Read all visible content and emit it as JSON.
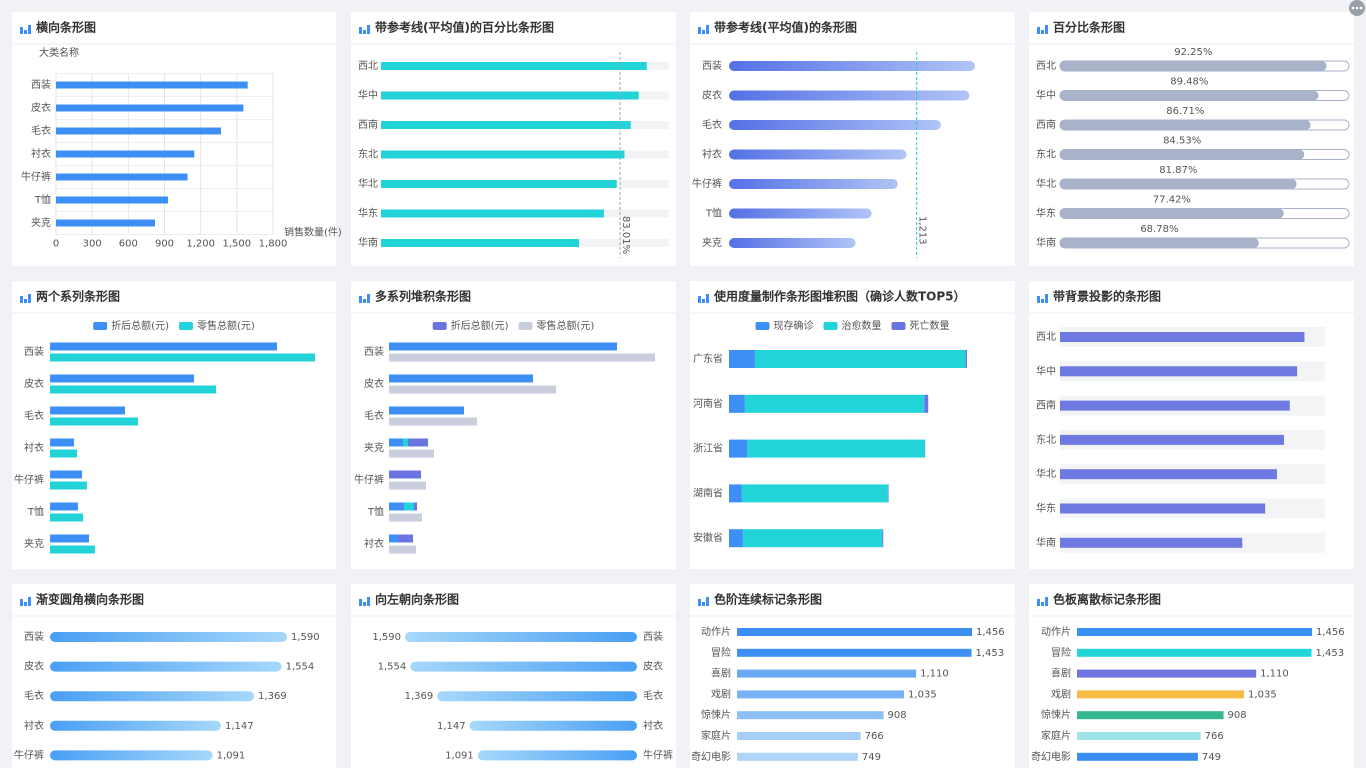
{
  "chart_data": [
    {
      "type": "bar",
      "title": "横向条形图",
      "y_axis_label": "大类名称",
      "x_axis_label": "销售数量(件)",
      "categories": [
        "西装",
        "皮衣",
        "毛衣",
        "衬衣",
        "牛仔裤",
        "T恤",
        "夹克"
      ],
      "values": [
        1590,
        1554,
        1369,
        1147,
        1091,
        929,
        821
      ],
      "color": "#3d8ff5",
      "xlim": [
        0,
        1800
      ],
      "xticks": [
        0,
        300,
        600,
        900,
        {
          "value": 1200,
          "label": "1,200"
        },
        {
          "value": 1500,
          "label": "1,500"
        },
        {
          "value": 1800,
          "label": "1,800"
        }
      ],
      "grid": true
    },
    {
      "type": "bar",
      "title": "带参考线(平均值)的百分比条形图",
      "categories": [
        "西北",
        "华中",
        "西南",
        "东北",
        "华北",
        "华东",
        "华南"
      ],
      "values": [
        92.25,
        89.48,
        86.71,
        84.53,
        81.87,
        77.42,
        68.78
      ],
      "color": "#22d3d8",
      "xlim": [
        0,
        100
      ],
      "track": true,
      "reference_line": {
        "value": 83.01,
        "label": "83.01%",
        "color": "#a0a4ab"
      }
    },
    {
      "type": "bar",
      "title": "带参考线(平均值)的条形图",
      "categories": [
        "西装",
        "皮衣",
        "毛衣",
        "衬衣",
        "牛仔裤",
        "T恤",
        "夹克"
      ],
      "values": [
        1590,
        1554,
        1369,
        1147,
        1091,
        922,
        818
      ],
      "gradient": [
        "#5470e6",
        "#b0c4f6"
      ],
      "reference_line": {
        "value": 1213,
        "label": "1,213",
        "color": "#22c7d8"
      }
    },
    {
      "type": "bar",
      "title": "百分比条形图",
      "categories": [
        "西北",
        "华中",
        "西南",
        "东北",
        "华北",
        "华东",
        "华南"
      ],
      "values": [
        92.25,
        89.48,
        86.71,
        84.53,
        81.87,
        77.42,
        68.78
      ],
      "value_labels": [
        "92.25%",
        "89.48%",
        "86.71%",
        "84.53%",
        "81.87%",
        "77.42%",
        "68.78%"
      ],
      "color": "#a8b2c8",
      "xlim": [
        0,
        100
      ],
      "track": true
    },
    {
      "type": "bar",
      "title": "两个系列条形图",
      "categories": [
        "西装",
        "皮衣",
        "毛衣",
        "衬衣",
        "牛仔裤",
        "T恤",
        "夹克"
      ],
      "series": [
        {
          "name": "折后总额(元)",
          "color": "#3d8ff5",
          "values": [
            227,
            144,
            75,
            24,
            32,
            28,
            39
          ]
        },
        {
          "name": "零售总额(元)",
          "color": "#22d3d8",
          "values": [
            265,
            166,
            88,
            27,
            37,
            33,
            45
          ]
        }
      ]
    },
    {
      "type": "bar",
      "title": "多系列堆积条形图",
      "stacked": true,
      "categories": [
        "西装",
        "皮衣",
        "毛衣",
        "夹克",
        "牛仔裤",
        "T恤",
        "衬衣"
      ],
      "series": [
        {
          "color": "#3d8ff5",
          "stack": 0,
          "values": [
            228,
            144,
            75,
            14,
            0,
            15,
            9
          ]
        },
        {
          "color": "#22d3d8",
          "stack": 0,
          "values": [
            0,
            0,
            0,
            5,
            0,
            10,
            0
          ]
        },
        {
          "name": "折后总额(元)",
          "color": "#6c74e4",
          "stack": 0,
          "values": [
            0,
            0,
            0,
            20,
            32,
            3,
            15
          ]
        },
        {
          "name": "零售总额(元)",
          "color": "#c8cedb",
          "stack": 1,
          "values": [
            266,
            167,
            88,
            45,
            37,
            33,
            27
          ]
        }
      ]
    },
    {
      "type": "bar",
      "title": "使用度量制作条形图堆积图（确诊人数TOP5）",
      "stacked": true,
      "categories": [
        "广东省",
        "河南省",
        "浙江省",
        "湖南省",
        "安徽省"
      ],
      "series": [
        {
          "name": "现存确诊",
          "color": "#3d8ff5",
          "values": [
            147,
            90,
            102,
            73,
            79
          ]
        },
        {
          "name": "治愈数量",
          "color": "#22d3d8",
          "values": [
            1195,
            1018,
            1010,
            828,
            790
          ]
        },
        {
          "name": "死亡数量",
          "color": "#6c74e4",
          "values": [
            8,
            22,
            1,
            4,
            6
          ]
        }
      ]
    },
    {
      "type": "bar",
      "title": "带背景投影的条形图",
      "categories": [
        "西北",
        "华中",
        "西南",
        "东北",
        "华北",
        "华东",
        "华南"
      ],
      "values": [
        92.25,
        89.48,
        86.71,
        84.53,
        81.87,
        77.42,
        68.78
      ],
      "color": "#6e7ae2",
      "xlim": [
        0,
        100
      ],
      "track": true
    },
    {
      "type": "bar",
      "title": "渐变圆角横向条形图",
      "categories": [
        "西装",
        "皮衣",
        "毛衣",
        "衬衣",
        "牛仔裤"
      ],
      "values": [
        1590,
        1554,
        1369,
        1147,
        1091
      ],
      "value_labels": [
        "1,590",
        "1,554",
        "1,369",
        "1,147",
        "1,091"
      ],
      "gradient": [
        "#4a9ff5",
        "#a6d8fa"
      ]
    },
    {
      "type": "bar",
      "title": "向左朝向条形图",
      "categories": [
        "西装",
        "皮衣",
        "毛衣",
        "衬衣",
        "牛仔裤"
      ],
      "values": [
        1590,
        1554,
        1369,
        1147,
        1091
      ],
      "value_labels": [
        "1,590",
        "1,554",
        "1,369",
        "1,147",
        "1,091"
      ],
      "gradient": [
        "#4a9ff5",
        "#a6d8fa"
      ]
    },
    {
      "type": "bar",
      "title": "色阶连续标记条形图",
      "categories": [
        "动作片",
        "冒险",
        "喜剧",
        "戏剧",
        "惊悚片",
        "家庭片",
        "奇幻电影"
      ],
      "values": [
        1456,
        1453,
        1110,
        1035,
        908,
        766,
        749
      ],
      "value_labels": [
        "1,456",
        "1,453",
        "1,110",
        "1,035",
        "908",
        "766",
        "749"
      ],
      "colors": [
        "#3d8ef5",
        "#3f90f5",
        "#6aaaf5",
        "#78b3f6",
        "#8ec0f7",
        "#a6cff8",
        "#aed4f9"
      ]
    },
    {
      "type": "bar",
      "title": "色板离散标记条形图",
      "categories": [
        "动作片",
        "冒险",
        "喜剧",
        "戏剧",
        "惊悚片",
        "家庭片",
        "奇幻电影"
      ],
      "values": [
        1456,
        1453,
        1110,
        1035,
        908,
        766,
        749
      ],
      "value_labels": [
        "1,456",
        "1,453",
        "1,110",
        "1,035",
        "908",
        "766",
        "749"
      ],
      "colors": [
        "#3b8ff2",
        "#22d3d8",
        "#6f74e0",
        "#f5bb42",
        "#35b88f",
        "#9fe2ea",
        "#3b8ff2"
      ]
    }
  ]
}
